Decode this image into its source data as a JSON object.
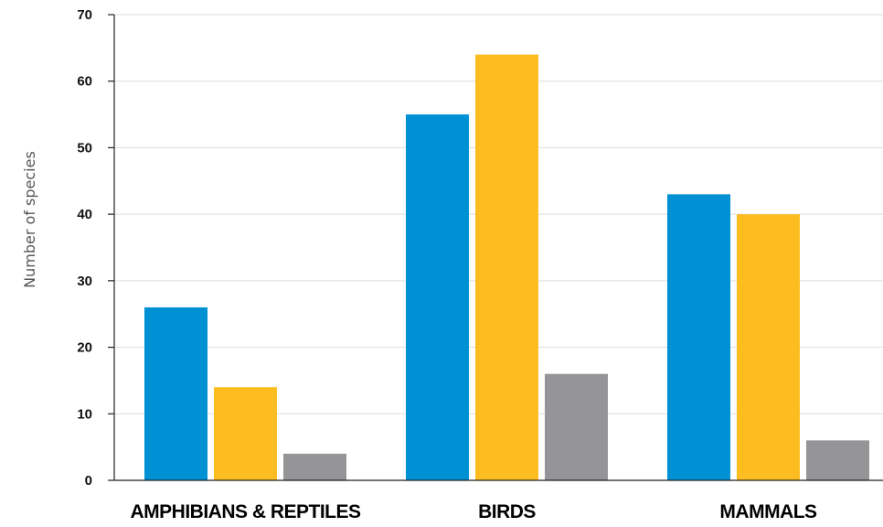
{
  "chart_data": {
    "type": "bar",
    "title": "",
    "xlabel": "",
    "ylabel": "Number of species",
    "ylim": [
      0,
      70
    ],
    "yticks": [
      0,
      10,
      20,
      30,
      40,
      50,
      60,
      70
    ],
    "grid": true,
    "legend": "none",
    "categories": [
      "AMPHIBIANS & REPTILES",
      "BIRDS",
      "MAMMALS"
    ],
    "series": [
      {
        "color": "#0091d5",
        "values": [
          26,
          55,
          43
        ]
      },
      {
        "color": "#fdbd21",
        "values": [
          14,
          64,
          40
        ]
      },
      {
        "color": "#959597",
        "values": [
          4,
          16,
          6
        ]
      }
    ]
  }
}
